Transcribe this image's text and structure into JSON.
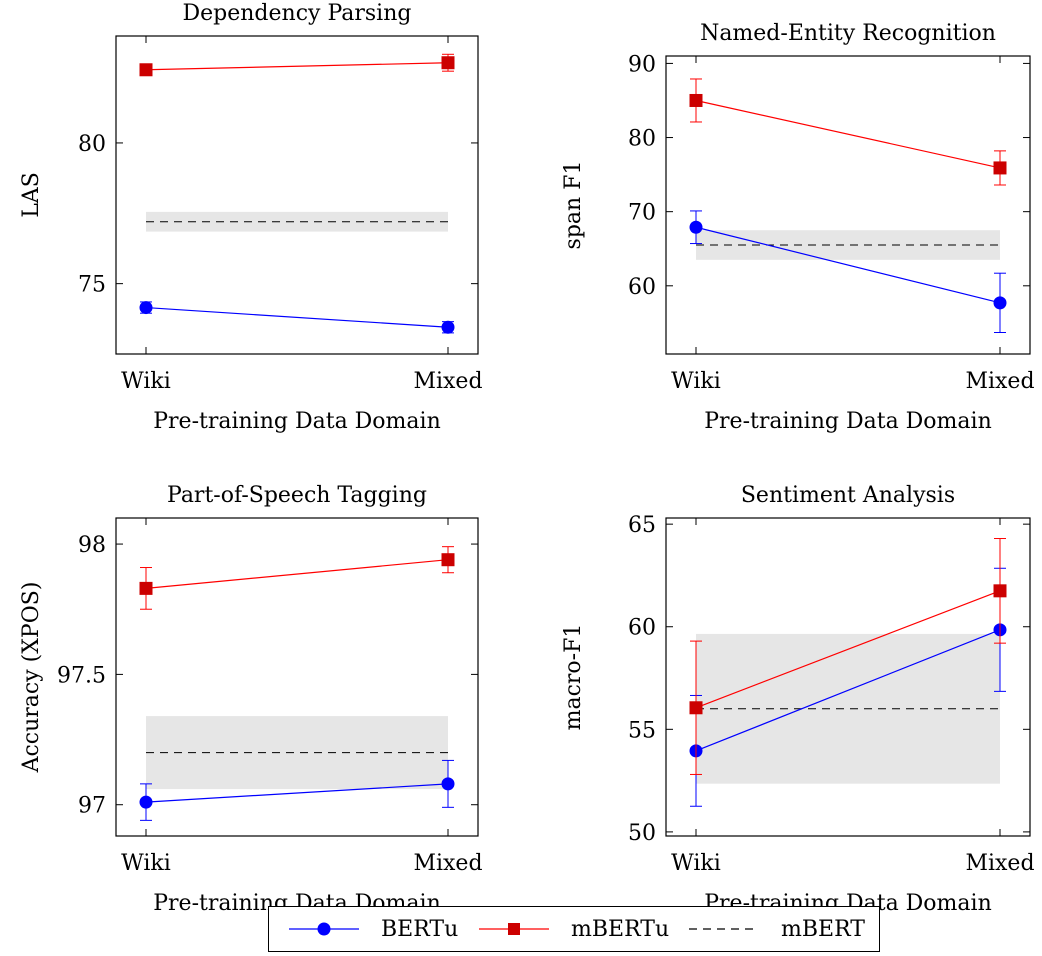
{
  "chart_data": [
    {
      "type": "line",
      "title": "Dependency Parsing",
      "xlabel": "Pre-training Data Domain",
      "ylabel": "LAS",
      "categories": [
        "Wiki",
        "Mixed"
      ],
      "ylim": [
        72.5,
        83.8
      ],
      "yticks": [
        75,
        80
      ],
      "grid": false,
      "series": [
        {
          "name": "BERTu",
          "color": "#0000ff",
          "marker": "circle",
          "values": [
            74.15,
            73.45
          ],
          "errors": [
            0.2,
            0.2
          ]
        },
        {
          "name": "mBERTu",
          "color": "#ff0000",
          "marker": "square",
          "values": [
            82.6,
            82.85
          ],
          "errors": [
            0.1,
            0.3
          ]
        }
      ],
      "baseline": {
        "name": "mBERT",
        "value": 77.2,
        "band": [
          76.85,
          77.55
        ]
      }
    },
    {
      "type": "line",
      "title": "Named-Entity Recognition",
      "xlabel": "Pre-training Data Domain",
      "ylabel": "span F1",
      "categories": [
        "Wiki",
        "Mixed"
      ],
      "ylim": [
        50.8,
        91.0
      ],
      "yticks": [
        60,
        70,
        80,
        90
      ],
      "grid": false,
      "series": [
        {
          "name": "BERTu",
          "color": "#0000ff",
          "marker": "circle",
          "values": [
            67.9,
            57.7
          ],
          "errors": [
            2.2,
            4.0
          ]
        },
        {
          "name": "mBERTu",
          "color": "#ff0000",
          "marker": "square",
          "values": [
            85.0,
            75.9
          ],
          "errors": [
            2.9,
            2.3
          ]
        }
      ],
      "baseline": {
        "name": "mBERT",
        "value": 65.5,
        "band": [
          63.5,
          67.5
        ]
      }
    },
    {
      "type": "line",
      "title": "Part-of-Speech Tagging",
      "xlabel": "Pre-training Data Domain",
      "ylabel": "Accuracy (XPOS)",
      "categories": [
        "Wiki",
        "Mixed"
      ],
      "ylim": [
        96.88,
        98.1
      ],
      "yticks": [
        97,
        97.5,
        98
      ],
      "grid": false,
      "series": [
        {
          "name": "BERTu",
          "color": "#0000ff",
          "marker": "circle",
          "values": [
            97.01,
            97.08
          ],
          "errors": [
            0.07,
            0.09
          ]
        },
        {
          "name": "mBERTu",
          "color": "#ff0000",
          "marker": "square",
          "values": [
            97.83,
            97.94
          ],
          "errors": [
            0.08,
            0.05
          ]
        }
      ],
      "baseline": {
        "name": "mBERT",
        "value": 97.2,
        "band": [
          97.06,
          97.34
        ]
      }
    },
    {
      "type": "line",
      "title": "Sentiment Analysis",
      "xlabel": "Pre-training Data Domain",
      "ylabel": "macro-F1",
      "categories": [
        "Wiki",
        "Mixed"
      ],
      "ylim": [
        49.8,
        65.3
      ],
      "yticks": [
        50,
        55,
        60,
        65
      ],
      "grid": false,
      "series": [
        {
          "name": "BERTu",
          "color": "#0000ff",
          "marker": "circle",
          "values": [
            53.95,
            59.85
          ],
          "errors": [
            2.7,
            3.0
          ]
        },
        {
          "name": "mBERTu",
          "color": "#ff0000",
          "marker": "square",
          "values": [
            56.05,
            61.75
          ],
          "errors": [
            3.25,
            2.55
          ]
        }
      ],
      "baseline": {
        "name": "mBERT",
        "value": 56.0,
        "band": [
          52.35,
          59.65
        ]
      }
    }
  ],
  "legend": {
    "placement": "bottom-center",
    "items": [
      {
        "label": "BERTu",
        "color": "#0000ff",
        "marker": "circle",
        "style": "solid"
      },
      {
        "label": "mBERTu",
        "color": "#ff0000",
        "marker": "square",
        "style": "solid"
      },
      {
        "label": "mBERT",
        "color": "#000000",
        "marker": "none",
        "style": "dashed"
      }
    ]
  },
  "colors": {
    "band": "#e6e6e6"
  }
}
